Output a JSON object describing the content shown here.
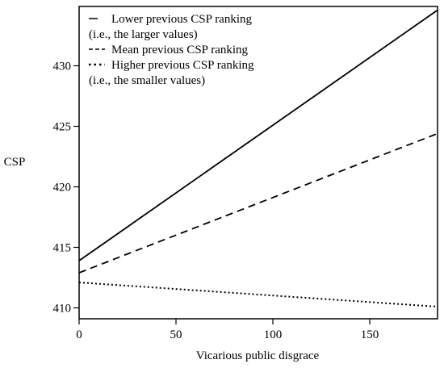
{
  "chart_data": {
    "type": "line",
    "title": "",
    "xlabel": "Vicarious public disgrace",
    "ylabel": "CSP",
    "xlim": [
      0,
      185
    ],
    "ylim": [
      409.1,
      434.9
    ],
    "xticks": [
      0,
      50,
      100,
      150
    ],
    "yticks": [
      410,
      415,
      420,
      425,
      430
    ],
    "grid": false,
    "legend_position": "top-left",
    "series": [
      {
        "name": "Lower previous CSP ranking",
        "legend_lines": [
          "Lower previous CSP ranking",
          "(i.e., the larger values)"
        ],
        "style": "solid",
        "x": [
          0,
          185
        ],
        "y": [
          413.9,
          434.6
        ]
      },
      {
        "name": "Mean previous CSP ranking",
        "legend_lines": [
          "Mean previous CSP ranking"
        ],
        "style": "dashed",
        "x": [
          0,
          185
        ],
        "y": [
          412.9,
          424.4
        ]
      },
      {
        "name": "Higher previous CSP ranking",
        "legend_lines": [
          "Higher previous CSP ranking",
          "(i.e., the smaller values)"
        ],
        "style": "dotted",
        "x": [
          0,
          185
        ],
        "y": [
          412.1,
          410.1
        ]
      }
    ]
  }
}
